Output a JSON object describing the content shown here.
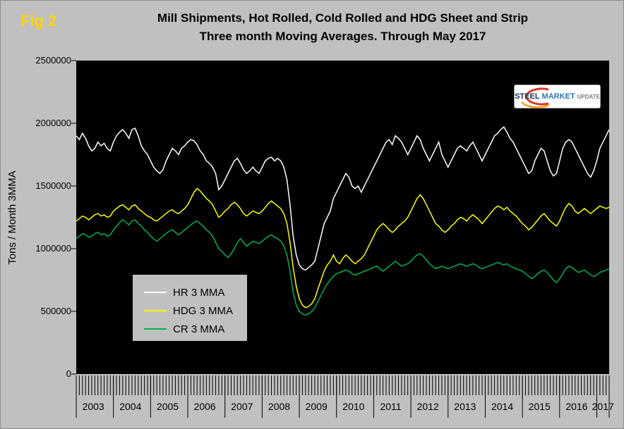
{
  "fig_label": "Fig 2",
  "logo": {
    "steel": "STEEL",
    "market": "MARKET",
    "update": "UPDATE"
  },
  "chart_data": {
    "type": "line",
    "title": "Mill Shipments, Hot Rolled, Cold Rolled and HDG Sheet and Strip",
    "subtitle": "Three month Moving Averages. Through May 2017",
    "ylabel": "Tons / Month 3MMA",
    "values_unit": "tons",
    "ylim": [
      0,
      2500000
    ],
    "y_ticks": [
      0,
      500000,
      1000000,
      1500000,
      2000000,
      2500000
    ],
    "grid": false,
    "plot_background": "#000000",
    "background": "#c0c0c0",
    "legend_position": "inside-lower-left",
    "x_range": {
      "start": "2003-01",
      "end": "2017-05",
      "interval": "monthly"
    },
    "year_labels": [
      "2003",
      "2004",
      "2005",
      "2006",
      "2007",
      "2008",
      "2009",
      "2010",
      "2011",
      "2012",
      "2013",
      "2014",
      "2015",
      "2016",
      "2017"
    ],
    "series": [
      {
        "name": "HR 3 MMA",
        "color": "#ffffff",
        "values": [
          1900000,
          1870000,
          1920000,
          1880000,
          1820000,
          1780000,
          1800000,
          1850000,
          1820000,
          1840000,
          1800000,
          1780000,
          1850000,
          1900000,
          1930000,
          1950000,
          1920000,
          1880000,
          1950000,
          1960000,
          1900000,
          1820000,
          1780000,
          1750000,
          1700000,
          1650000,
          1620000,
          1600000,
          1630000,
          1700000,
          1750000,
          1800000,
          1780000,
          1750000,
          1800000,
          1820000,
          1850000,
          1870000,
          1860000,
          1830000,
          1780000,
          1750000,
          1700000,
          1680000,
          1650000,
          1600000,
          1470000,
          1500000,
          1550000,
          1600000,
          1650000,
          1700000,
          1720000,
          1680000,
          1630000,
          1600000,
          1620000,
          1650000,
          1620000,
          1600000,
          1650000,
          1700000,
          1720000,
          1730000,
          1700000,
          1720000,
          1700000,
          1650000,
          1550000,
          1350000,
          1100000,
          950000,
          870000,
          840000,
          830000,
          850000,
          870000,
          900000,
          1000000,
          1100000,
          1200000,
          1250000,
          1300000,
          1400000,
          1450000,
          1500000,
          1550000,
          1600000,
          1570000,
          1500000,
          1480000,
          1500000,
          1450000,
          1500000,
          1550000,
          1600000,
          1650000,
          1700000,
          1750000,
          1800000,
          1850000,
          1870000,
          1830000,
          1900000,
          1880000,
          1850000,
          1800000,
          1750000,
          1800000,
          1850000,
          1900000,
          1870000,
          1800000,
          1750000,
          1700000,
          1750000,
          1800000,
          1850000,
          1750000,
          1700000,
          1650000,
          1700000,
          1750000,
          1800000,
          1820000,
          1800000,
          1780000,
          1820000,
          1850000,
          1800000,
          1750000,
          1700000,
          1750000,
          1800000,
          1850000,
          1900000,
          1920000,
          1950000,
          1970000,
          1930000,
          1880000,
          1850000,
          1800000,
          1750000,
          1700000,
          1650000,
          1600000,
          1620000,
          1700000,
          1750000,
          1800000,
          1780000,
          1700000,
          1620000,
          1580000,
          1600000,
          1700000,
          1800000,
          1850000,
          1870000,
          1850000,
          1800000,
          1750000,
          1700000,
          1650000,
          1600000,
          1570000,
          1620000,
          1700000,
          1800000,
          1850000,
          1900000,
          1950000
        ]
      },
      {
        "name": "HDG 3 MMA",
        "color": "#ffff00",
        "values": [
          1220000,
          1240000,
          1260000,
          1250000,
          1230000,
          1250000,
          1270000,
          1280000,
          1260000,
          1270000,
          1250000,
          1260000,
          1300000,
          1320000,
          1340000,
          1350000,
          1330000,
          1310000,
          1340000,
          1350000,
          1320000,
          1300000,
          1280000,
          1260000,
          1250000,
          1230000,
          1220000,
          1240000,
          1260000,
          1280000,
          1300000,
          1310000,
          1290000,
          1280000,
          1300000,
          1320000,
          1350000,
          1400000,
          1450000,
          1480000,
          1460000,
          1430000,
          1400000,
          1380000,
          1350000,
          1300000,
          1250000,
          1270000,
          1300000,
          1320000,
          1350000,
          1370000,
          1350000,
          1320000,
          1280000,
          1260000,
          1280000,
          1300000,
          1290000,
          1280000,
          1300000,
          1330000,
          1360000,
          1380000,
          1360000,
          1340000,
          1320000,
          1280000,
          1200000,
          1050000,
          850000,
          700000,
          600000,
          550000,
          530000,
          540000,
          560000,
          600000,
          680000,
          750000,
          820000,
          870000,
          900000,
          950000,
          900000,
          880000,
          920000,
          950000,
          930000,
          900000,
          880000,
          900000,
          920000,
          950000,
          1000000,
          1050000,
          1100000,
          1150000,
          1180000,
          1200000,
          1180000,
          1150000,
          1130000,
          1150000,
          1180000,
          1200000,
          1220000,
          1250000,
          1300000,
          1350000,
          1400000,
          1430000,
          1400000,
          1350000,
          1300000,
          1250000,
          1200000,
          1180000,
          1150000,
          1130000,
          1150000,
          1180000,
          1200000,
          1230000,
          1250000,
          1240000,
          1220000,
          1250000,
          1270000,
          1250000,
          1230000,
          1200000,
          1230000,
          1260000,
          1290000,
          1320000,
          1340000,
          1330000,
          1310000,
          1330000,
          1300000,
          1280000,
          1260000,
          1230000,
          1200000,
          1180000,
          1150000,
          1170000,
          1200000,
          1230000,
          1260000,
          1280000,
          1250000,
          1220000,
          1200000,
          1180000,
          1220000,
          1280000,
          1330000,
          1360000,
          1340000,
          1300000,
          1280000,
          1300000,
          1320000,
          1300000,
          1280000,
          1300000,
          1320000,
          1340000,
          1330000,
          1320000,
          1330000
        ]
      },
      {
        "name": "CR 3 MMA",
        "color": "#00b050",
        "values": [
          1080000,
          1100000,
          1120000,
          1110000,
          1090000,
          1100000,
          1120000,
          1130000,
          1110000,
          1120000,
          1100000,
          1110000,
          1150000,
          1180000,
          1210000,
          1230000,
          1210000,
          1190000,
          1220000,
          1230000,
          1200000,
          1180000,
          1150000,
          1130000,
          1100000,
          1080000,
          1060000,
          1080000,
          1100000,
          1120000,
          1140000,
          1150000,
          1130000,
          1110000,
          1130000,
          1150000,
          1170000,
          1190000,
          1210000,
          1220000,
          1200000,
          1180000,
          1150000,
          1130000,
          1100000,
          1050000,
          1000000,
          980000,
          950000,
          930000,
          960000,
          1000000,
          1050000,
          1080000,
          1050000,
          1020000,
          1040000,
          1060000,
          1050000,
          1040000,
          1060000,
          1080000,
          1100000,
          1110000,
          1090000,
          1080000,
          1060000,
          1020000,
          950000,
          820000,
          650000,
          550000,
          500000,
          480000,
          470000,
          480000,
          500000,
          530000,
          580000,
          630000,
          680000,
          720000,
          750000,
          780000,
          800000,
          810000,
          820000,
          830000,
          820000,
          800000,
          790000,
          800000,
          810000,
          820000,
          830000,
          840000,
          850000,
          860000,
          840000,
          820000,
          840000,
          860000,
          880000,
          900000,
          880000,
          860000,
          870000,
          880000,
          900000,
          930000,
          950000,
          960000,
          940000,
          910000,
          880000,
          860000,
          840000,
          850000,
          860000,
          850000,
          840000,
          850000,
          860000,
          870000,
          880000,
          870000,
          860000,
          870000,
          880000,
          870000,
          850000,
          840000,
          850000,
          860000,
          870000,
          880000,
          890000,
          880000,
          870000,
          880000,
          860000,
          850000,
          840000,
          830000,
          820000,
          800000,
          780000,
          760000,
          780000,
          800000,
          820000,
          830000,
          810000,
          780000,
          750000,
          730000,
          760000,
          800000,
          840000,
          860000,
          850000,
          830000,
          810000,
          820000,
          830000,
          810000,
          790000,
          780000,
          790000,
          810000,
          820000,
          830000,
          840000
        ]
      }
    ]
  }
}
